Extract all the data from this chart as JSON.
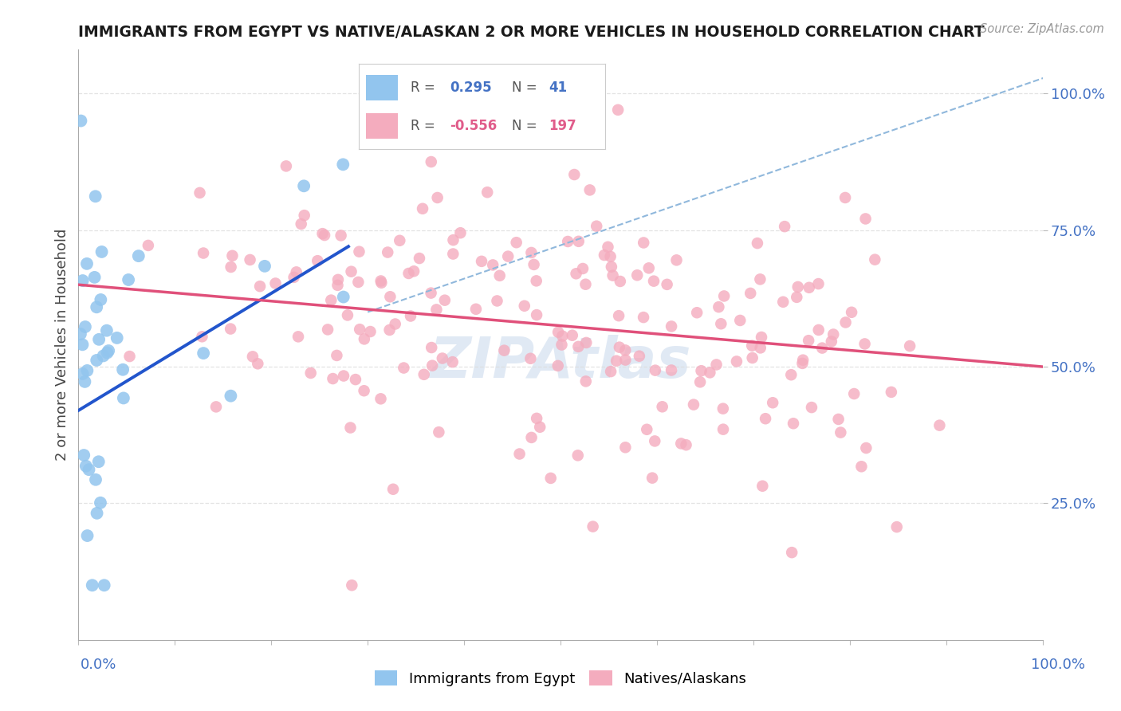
{
  "title": "IMMIGRANTS FROM EGYPT VS NATIVE/ALASKAN 2 OR MORE VEHICLES IN HOUSEHOLD CORRELATION CHART",
  "source": "Source: ZipAtlas.com",
  "ylabel": "2 or more Vehicles in Household",
  "legend_blue_label": "Immigrants from Egypt",
  "legend_pink_label": "Natives/Alaskans",
  "R_blue": 0.295,
  "N_blue": 41,
  "R_pink": -0.556,
  "N_pink": 197,
  "blue_color": "#92C5EE",
  "pink_color": "#F4ACBE",
  "blue_line_color": "#2255CC",
  "pink_line_color": "#E0507A",
  "dashed_line_color": "#90B8DC",
  "title_color": "#1a1a1a",
  "source_color": "#999999",
  "axis_label_color": "#4472C4",
  "legend_R_blue_color": "#4472C4",
  "legend_R_pink_color": "#E05C8A",
  "legend_N_blue_color": "#4472C4",
  "legend_N_pink_color": "#E05C8A",
  "background_color": "#FFFFFF",
  "grid_color": "#DDDDDD",
  "xlim": [
    0.0,
    1.0
  ],
  "ylim": [
    0.0,
    1.08
  ],
  "seed_blue": 12,
  "seed_pink": 99,
  "blue_line_x0": 0.0,
  "blue_line_y0": 0.42,
  "blue_line_x1": 0.28,
  "blue_line_y1": 0.72,
  "pink_line_x0": 0.0,
  "pink_line_y0": 0.65,
  "pink_line_x1": 1.0,
  "pink_line_y1": 0.5,
  "dash_line_x0": 0.3,
  "dash_line_y0": 0.6,
  "dash_line_x1": 1.02,
  "dash_line_y1": 1.04
}
